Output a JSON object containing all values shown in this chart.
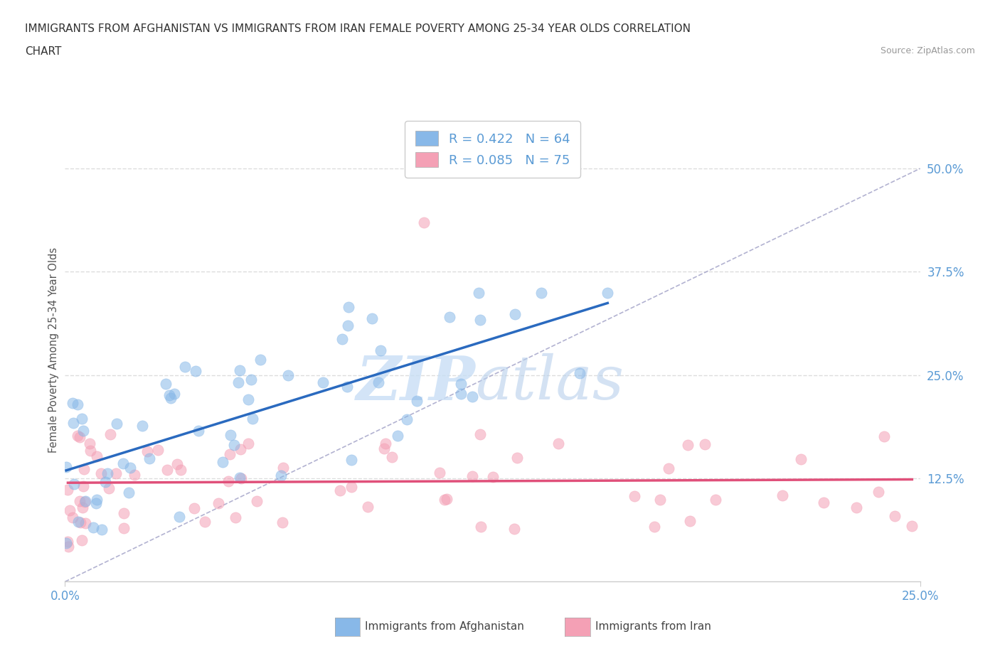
{
  "title_line1": "IMMIGRANTS FROM AFGHANISTAN VS IMMIGRANTS FROM IRAN FEMALE POVERTY AMONG 25-34 YEAR OLDS CORRELATION",
  "title_line2": "CHART",
  "source_text": "Source: ZipAtlas.com",
  "ylabel": "Female Poverty Among 25-34 Year Olds",
  "xlim": [
    0,
    0.25
  ],
  "ylim": [
    0,
    0.56
  ],
  "afghanistan_color": "#88b8e8",
  "iran_color": "#f4a0b5",
  "afghanistan_line_color": "#2a6abf",
  "iran_line_color": "#e0507a",
  "afghanistan_R": 0.422,
  "afghanistan_N": 64,
  "iran_R": 0.085,
  "iran_N": 75,
  "background_color": "#ffffff",
  "watermark_color": "#d8eaf8",
  "grid_color": "#dddddd",
  "axis_color": "#cccccc",
  "label_color": "#5b9bd5",
  "diag_color": "#aaaacc"
}
